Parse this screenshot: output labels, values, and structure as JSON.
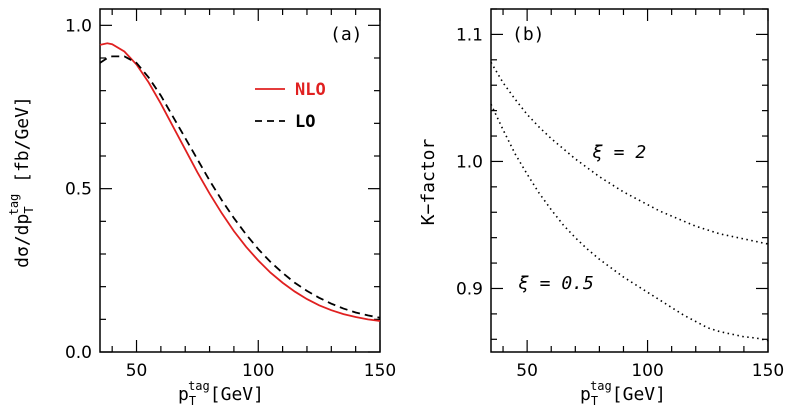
{
  "chart_data": [
    {
      "type": "line",
      "panel_label": "(a)",
      "ylabel": "dσ/dp_T^tag [fb/GeV]",
      "xlabel": "p_T^tag [GeV]",
      "xlim": [
        35,
        150
      ],
      "ylim": [
        0.0,
        1.05
      ],
      "x_ticks": [
        50,
        100,
        150
      ],
      "y_ticks": [
        0.0,
        0.5,
        1.0
      ],
      "y_tick_labels": [
        "0.0",
        "0.5",
        "1.0"
      ],
      "legend": {
        "placement": "upper-right",
        "entries": [
          "NLO",
          "LO"
        ]
      },
      "series": [
        {
          "name": "NLO",
          "color": "#e02020",
          "style": "solid",
          "x": [
            35,
            38,
            40,
            45,
            50,
            55,
            60,
            65,
            70,
            75,
            80,
            85,
            90,
            95,
            100,
            105,
            110,
            115,
            120,
            125,
            130,
            135,
            140,
            145,
            150
          ],
          "y": [
            0.94,
            0.945,
            0.942,
            0.92,
            0.88,
            0.825,
            0.76,
            0.69,
            0.62,
            0.55,
            0.485,
            0.425,
            0.37,
            0.322,
            0.28,
            0.243,
            0.212,
            0.185,
            0.162,
            0.143,
            0.128,
            0.116,
            0.107,
            0.1,
            0.095
          ]
        },
        {
          "name": "LO",
          "color": "#000000",
          "style": "dashed",
          "x": [
            35,
            38,
            40,
            45,
            50,
            55,
            60,
            65,
            70,
            75,
            80,
            85,
            90,
            95,
            100,
            105,
            110,
            115,
            120,
            125,
            130,
            135,
            140,
            145,
            150
          ],
          "y": [
            0.885,
            0.9,
            0.905,
            0.905,
            0.885,
            0.84,
            0.785,
            0.72,
            0.655,
            0.59,
            0.525,
            0.465,
            0.41,
            0.36,
            0.315,
            0.276,
            0.242,
            0.212,
            0.187,
            0.166,
            0.148,
            0.133,
            0.121,
            0.112,
            0.105
          ]
        }
      ]
    },
    {
      "type": "line",
      "panel_label": "(b)",
      "ylabel": "K−factor",
      "xlabel": "p_T^tag [GeV]",
      "xlim": [
        35,
        150
      ],
      "ylim": [
        0.85,
        1.12
      ],
      "x_ticks": [
        50,
        100,
        150
      ],
      "y_ticks": [
        0.9,
        1.0,
        1.1
      ],
      "y_tick_labels": [
        "0.9",
        "1.0",
        "1.1"
      ],
      "series": [
        {
          "name": "ξ = 2",
          "color": "#000000",
          "style": "dotted",
          "x": [
            35,
            40,
            45,
            50,
            55,
            60,
            65,
            70,
            75,
            80,
            85,
            90,
            95,
            100,
            105,
            110,
            115,
            120,
            125,
            130,
            135,
            140,
            145,
            150
          ],
          "y": [
            1.078,
            1.062,
            1.049,
            1.037,
            1.027,
            1.018,
            1.01,
            1.002,
            0.995,
            0.988,
            0.982,
            0.976,
            0.971,
            0.966,
            0.961,
            0.957,
            0.953,
            0.949,
            0.946,
            0.943,
            0.941,
            0.939,
            0.937,
            0.935
          ]
        },
        {
          "name": "ξ = 0.5",
          "color": "#000000",
          "style": "dotted",
          "x": [
            35,
            40,
            45,
            50,
            55,
            60,
            65,
            70,
            75,
            80,
            85,
            90,
            95,
            100,
            105,
            110,
            115,
            120,
            125,
            130,
            135,
            140,
            145,
            150
          ],
          "y": [
            1.045,
            1.025,
            1.006,
            0.99,
            0.975,
            0.962,
            0.95,
            0.94,
            0.931,
            0.923,
            0.916,
            0.909,
            0.903,
            0.897,
            0.891,
            0.885,
            0.879,
            0.874,
            0.869,
            0.866,
            0.864,
            0.862,
            0.861,
            0.859
          ]
        }
      ],
      "annotations": [
        {
          "text": "ξ = 2",
          "x": 90,
          "y": 1.013
        },
        {
          "text": "ξ = 0.5",
          "x": 50,
          "y": 0.904
        }
      ]
    }
  ]
}
